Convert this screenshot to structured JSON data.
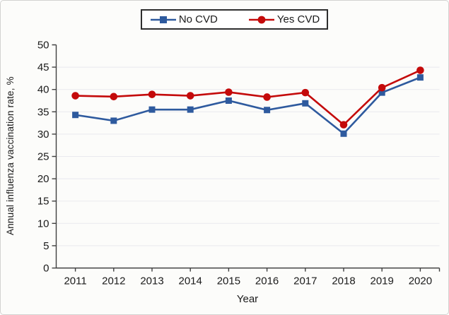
{
  "chart_data": {
    "type": "line",
    "title": "",
    "xlabel": "Year",
    "ylabel": "Annual influenza vaccination rate, %",
    "categories": [
      "2011",
      "2012",
      "2013",
      "2014",
      "2015",
      "2016",
      "2017",
      "2018",
      "2019",
      "2020"
    ],
    "series": [
      {
        "name": "No CVD",
        "marker": "square",
        "color": "#2e5a9e",
        "values": [
          34.3,
          33.0,
          35.5,
          35.5,
          37.5,
          35.4,
          36.9,
          30.1,
          39.3,
          42.7
        ]
      },
      {
        "name": "Yes CVD",
        "marker": "circle",
        "color": "#c40a0a",
        "values": [
          38.6,
          38.4,
          38.9,
          38.6,
          39.4,
          38.3,
          39.3,
          32.1,
          40.4,
          44.3
        ]
      }
    ],
    "ylim": [
      0,
      50
    ],
    "ytick_step": 5,
    "grid": true,
    "grid_color": "#e9e9ee",
    "axis_color": "#404040",
    "legend_position": "top-center"
  }
}
